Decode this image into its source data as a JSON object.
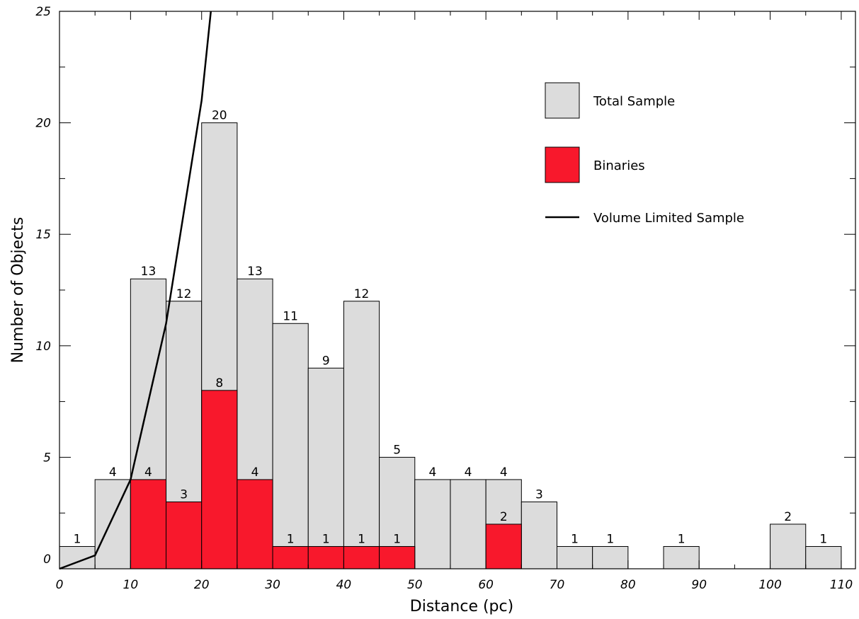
{
  "chart_data": {
    "type": "bar",
    "xlabel": "Distance (pc)",
    "ylabel": "Number of Objects",
    "xlim": [
      0,
      112
    ],
    "ylim": [
      0,
      25
    ],
    "bin_width": 5,
    "x_ticks": [
      "0",
      "10",
      "20",
      "30",
      "40",
      "50",
      "60",
      "70",
      "80",
      "90",
      "100",
      "110"
    ],
    "y_ticks": [
      "0",
      "5",
      "10",
      "15",
      "20",
      "25"
    ],
    "series": [
      {
        "name": "Total Sample",
        "color": "#dcdcdc",
        "bins": [
          {
            "x0": 0,
            "value": 1
          },
          {
            "x0": 5,
            "value": 4
          },
          {
            "x0": 10,
            "value": 13
          },
          {
            "x0": 15,
            "value": 12
          },
          {
            "x0": 20,
            "value": 20
          },
          {
            "x0": 25,
            "value": 13
          },
          {
            "x0": 30,
            "value": 11
          },
          {
            "x0": 35,
            "value": 9
          },
          {
            "x0": 40,
            "value": 12
          },
          {
            "x0": 45,
            "value": 5
          },
          {
            "x0": 50,
            "value": 4
          },
          {
            "x0": 55,
            "value": 4
          },
          {
            "x0": 60,
            "value": 4
          },
          {
            "x0": 65,
            "value": 3
          },
          {
            "x0": 70,
            "value": 1
          },
          {
            "x0": 75,
            "value": 1
          },
          {
            "x0": 85,
            "value": 1
          },
          {
            "x0": 100,
            "value": 2
          },
          {
            "x0": 105,
            "value": 1
          }
        ]
      },
      {
        "name": "Binaries",
        "color": "#f8182c",
        "bins": [
          {
            "x0": 10,
            "value": 4
          },
          {
            "x0": 15,
            "value": 3
          },
          {
            "x0": 20,
            "value": 8
          },
          {
            "x0": 25,
            "value": 4
          },
          {
            "x0": 30,
            "value": 1
          },
          {
            "x0": 35,
            "value": 1
          },
          {
            "x0": 40,
            "value": 1
          },
          {
            "x0": 45,
            "value": 1
          },
          {
            "x0": 60,
            "value": 2
          }
        ]
      },
      {
        "name": "Volume Limited Sample",
        "type": "line",
        "color": "#000000",
        "x": [
          0,
          5,
          10,
          15,
          20,
          21.3
        ],
        "y": [
          0,
          0.6,
          4,
          11,
          21,
          25
        ]
      }
    ],
    "legend": {
      "placement": "top-right",
      "items": [
        "Total Sample",
        "Binaries",
        "Volume Limited Sample"
      ]
    }
  }
}
